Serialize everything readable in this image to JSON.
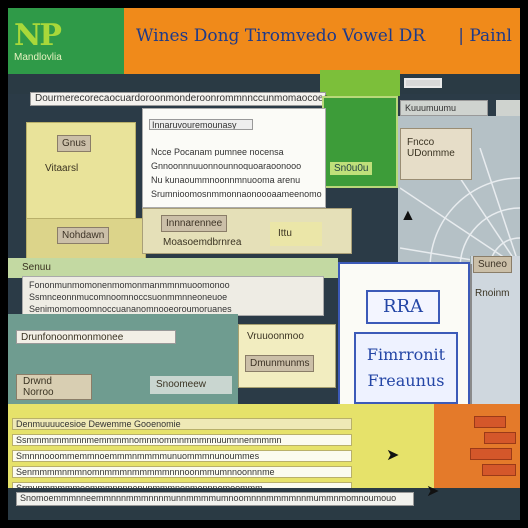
{
  "header": {
    "logo": "NP",
    "logo_sub": "Mandlovlia",
    "title": "Wines Dong Tiromvedo Vowel DR",
    "title_right": "| Painl"
  },
  "command_bar": {
    "text": "Dourmerecorecaocuardoroonmonderoonrommnnccunmomaocoes"
  },
  "green_tile": {
    "label": "Sn0u0u"
  },
  "right_tabs": {
    "tab1": "Kuuumuumu"
  },
  "left_panel": {
    "btn1": "Gnus",
    "label1": "Vitaarsl",
    "btn2": "Nohdawn"
  },
  "doc_panel": {
    "heading": "Innaruvouremounasy",
    "lines": [
      "Ncce  Pocanam  pumnee nocensa",
      "Gnnoonnnuuonnounnoquoaraoonooo",
      "Nu kunaoummnoonnmnuooma arenu",
      "Srumnioomosnmmonnaonoooaameenomo"
    ]
  },
  "mid_panel": {
    "btn": "Innnarennee",
    "label": "Moasoemdbrnrea",
    "tag": "Ittu"
  },
  "list_panel": {
    "header": "Senuu",
    "lines": [
      "Fononmunmomonenmomonmanmmnmuoomonoo",
      "Ssmnceonnmucomnoomnoccsuonmmnneoneuoe",
      "Senimomomoomnoccuananomnooeoroumoruanes"
    ]
  },
  "teal_panel": {
    "row1": "Drunfonoonmonmonee",
    "btn": "Drwnd",
    "btn_sub": "Norroo",
    "btn2": "Snoomeew"
  },
  "cream_panel": {
    "title": "Vruuoonmoo",
    "btn": "Dmunmunms"
  },
  "modal": {
    "title": "RRA",
    "body_line1": "Fimrronit",
    "body_line2": "Freaunus"
  },
  "right_col": {
    "block": "Fncco\nUDonmme",
    "lower1": "Suneo",
    "lower2": "Rnoinm"
  },
  "bottom": {
    "rows": [
      "Denmuuuucesioe    Dewemme    Gooenomie",
      "Ssmmmnmmmnnmemmmmnomnmommnmmmnnuumnnenmmmn",
      "Smnnnooommemmnoemmmnmmmmunuommmnunoummes",
      "Senmmmmnmmnomnmmmnmmmmmnnnoonmmumnnoonnnme",
      "Srmunmmmmmoommmnnnnenunmmmnonmennnomoommm"
    ],
    "input": "Snomoemmmnneemmnnnmmmnnnmunnmmmmumnoomnnnmmmmnnmummnmomnoumouo"
  },
  "colors": {
    "brand_green": "#2f9a48",
    "title_orange": "#f08a1a",
    "modal_blue": "#3c5ab8"
  }
}
